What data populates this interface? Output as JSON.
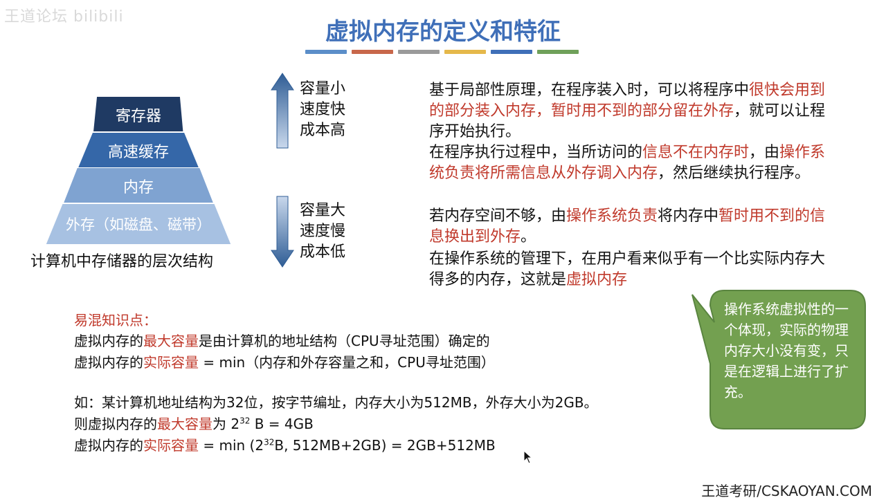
{
  "watermark": "王道论坛 bilibili",
  "title": "虚拟内存的定义和特征",
  "title_bar_colors": [
    "#5b8ec9",
    "#c8674a",
    "#9a9a9a",
    "#e5b84a",
    "#3f6fb8",
    "#6fa05a"
  ],
  "pyramid": {
    "levels": [
      {
        "label": "寄存器",
        "color": "#1f3a63"
      },
      {
        "label": "高速缓存",
        "color": "#3567a8"
      },
      {
        "label": "内存",
        "color": "#7fa3d1"
      },
      {
        "label": "外存（如磁盘、磁带）",
        "color": "#a7c1e2"
      }
    ],
    "caption": "计算机中存储器的层次结构"
  },
  "arrows": {
    "up_lines": [
      "容量小",
      "速度快",
      "成本高"
    ],
    "down_lines": [
      "容量大",
      "速度慢",
      "成本低"
    ],
    "up_icon": "arrow-up-icon",
    "down_icon": "arrow-down-icon"
  },
  "paragraphs": {
    "p1": {
      "a": "基于局部性原理，在程序装入时，可以将程序中",
      "b": "很快会用到的部分装入内存，暂时用不到的部分留在外存",
      "c": "，就可以让程序开始执行。"
    },
    "p2": {
      "a": "在程序执行过程中，当所访问的",
      "b": "信息不在内存时",
      "c": "，由",
      "d": "操作系统负责将所需信息从外存调入内存",
      "e": "，然后继续执行程序。"
    },
    "p3": {
      "a": "若内存空间不够，由",
      "b": "操作系统负责",
      "c": "将内存中",
      "d": "暂时用不到的信息换出到外存",
      "e": "。"
    },
    "p4": {
      "a": "在操作系统的管理下，在用户看来似乎有一个比实际内存大得多的内存，这就是",
      "b": "虚拟内存"
    }
  },
  "notes": {
    "title": "易混知识点：",
    "l1": {
      "a": "虚拟内存的",
      "b": "最大容量",
      "c": "是由计算机的地址结构（CPU寻址范围）确定的"
    },
    "l2": {
      "a": "虚拟内存的",
      "b": "实际容量",
      "c": " = min（内存和外存容量之和，CPU寻址范围）"
    },
    "l3": "如：某计算机地址结构为32位，按字节编址，内存大小为512MB，外存大小为2GB。",
    "l4": {
      "a": "则虚拟内存的",
      "b": "最大容量",
      "c": "为 2",
      "sup": "32",
      "d": " B = 4GB"
    },
    "l5": {
      "a": "虚拟内存的",
      "b": "实际容量",
      "c": " = min (2",
      "sup": "32",
      "d": "B, 512MB+2GB) = 2GB+512MB"
    }
  },
  "callout": {
    "text": "操作系统虚拟性的一个体现，实际的物理内存大小没有变，只是在逻辑上进行了扩充。",
    "color": "#73a050"
  },
  "footer": "王道考研/CSKAOYAN.COM"
}
